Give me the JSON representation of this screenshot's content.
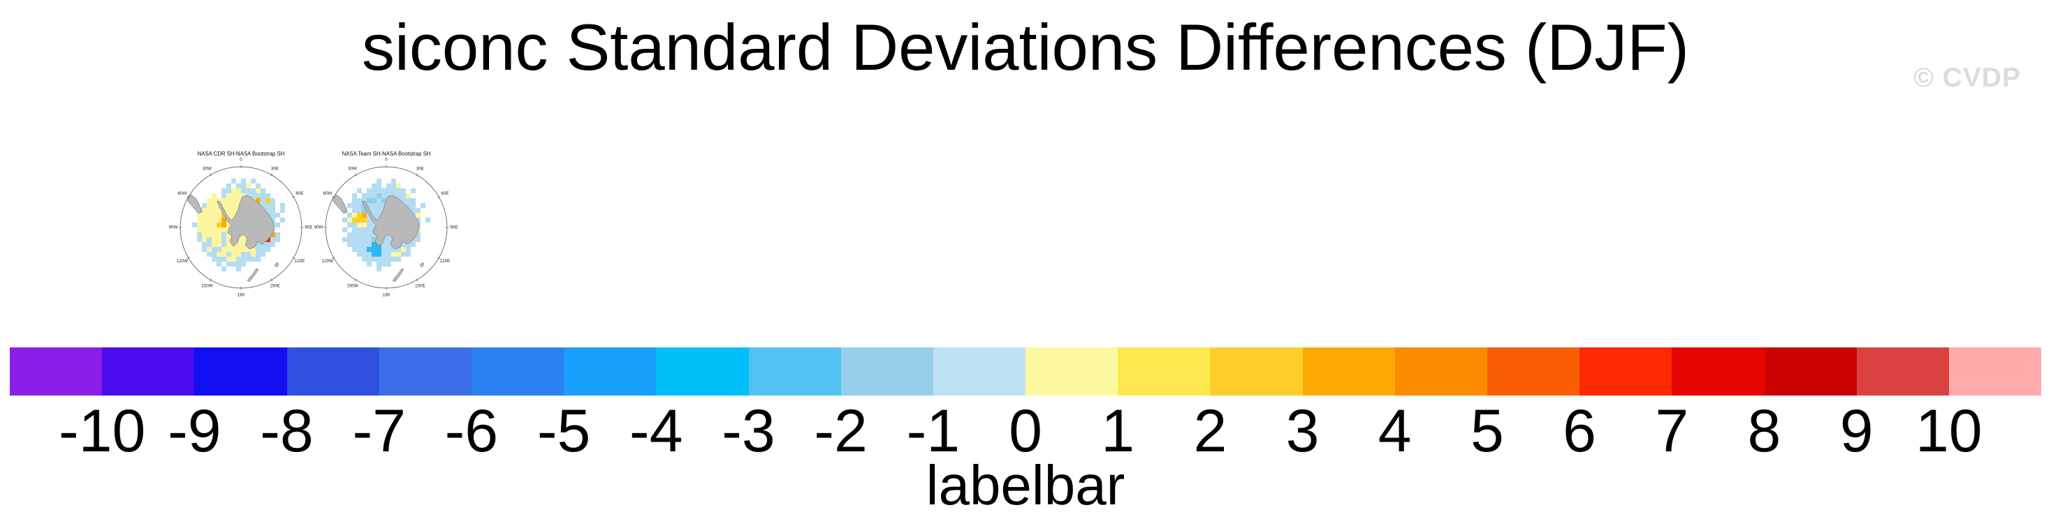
{
  "page": {
    "title": "siconc Standard Deviations Differences (DJF)",
    "watermark": "© CVDP",
    "background": "#ffffff"
  },
  "maps": [
    {
      "title": "NASA CDR SH-NASA Bootstrap SH",
      "lon_labels": [
        {
          "label": "0",
          "deg": 0
        },
        {
          "label": "30E",
          "deg": 30
        },
        {
          "label": "60E",
          "deg": 60
        },
        {
          "label": "90E",
          "deg": 90
        },
        {
          "label": "120E",
          "deg": 120
        },
        {
          "label": "150E",
          "deg": 150
        },
        {
          "label": "180",
          "deg": 180
        },
        {
          "label": "150W",
          "deg": 210
        },
        {
          "label": "120W",
          "deg": 240
        },
        {
          "label": "90W",
          "deg": 270
        },
        {
          "label": "60W",
          "deg": 300
        },
        {
          "label": "30W",
          "deg": 330
        }
      ],
      "grid": [
        "......................",
        ".........b.b.b........",
        "........b.bby.b.......",
        ".......bbyybbbyb......",
        ".....y.byyyybbbbb.....",
        "....yyyyyyyyyyobYb....",
        "...byyyyyyyyyybbbb.b..",
        "..byyyyyyyyyyybbbb.b..",
        "..yyyyyYyyyyyybbbbb...",
        "..yyyyyoyyyyyybbbb.b..",
        ".byyyyYoyyyyyybbbbb...",
        "..yyyyyyyyyyyybbbb....",
        "..byyyybyyyyyybbbob...",
        "..bybyybyyyyyybbrbb...",
        "...bbyybyyyyyybbbb....",
        "...bybbyyyyyyybbb.....",
        "....bbyybyybbybb......",
        ".....bbbyybbbbb.......",
        "......b.bbbb..........",
        ".......b..b...........",
        "......................",
        "......................"
      ]
    },
    {
      "title": "NASA Team SH-NASA Bootstrap SH",
      "lon_labels": [
        {
          "label": "0",
          "deg": 0
        },
        {
          "label": "30E",
          "deg": 30
        },
        {
          "label": "60E",
          "deg": 60
        },
        {
          "label": "90E",
          "deg": 90
        },
        {
          "label": "120E",
          "deg": 120
        },
        {
          "label": "150E",
          "deg": 150
        },
        {
          "label": "180",
          "deg": 180
        },
        {
          "label": "150W",
          "deg": 210
        },
        {
          "label": "120W",
          "deg": 240
        },
        {
          "label": "90W",
          "deg": 270
        },
        {
          "label": "60W",
          "deg": 300
        },
        {
          "label": "30W",
          "deg": 330
        }
      ],
      "grid": [
        "......................",
        ".........b..b.........",
        "........bb.bby........",
        ".....b.bbbbbbbb.b.....",
        "....b.bbbcbbbbby......",
        "....bbbccbcbbbbbb.....",
        "...bbbcbbbbbcbbbb.b...",
        "..b.bbcbbbbbbcbbbb....",
        "...byYobbbbbbbbbby....",
        "..byYYYbbbbbbbbbbb.b..",
        "...bbyybbbbbbbbcbb....",
        "..b.bbbbbbbbbbbbby....",
        "...bbbbbbbbbbbbbYb....",
        "..bbbbbbcbbbbbbObb....",
        "...bbbbbCCbbbbbbb.....",
        "....bbbCCCbbbbyb......",
        ".....bbbCCbbyybb......",
        "......bbbbbbbb........",
        ".......b.bbb..........",
        ".........b............",
        "......................",
        "......................"
      ]
    }
  ],
  "map_style": {
    "land_color": "#b9b9b9",
    "land_outline": "#4a4a4a",
    "circle_color": "#3a3a3a",
    "label_color": "#222222",
    "cell_colors": {
      "y": "#FCF6A0",
      "Y": "#FDCE2A",
      "o": "#FCAB05",
      "O": "#FA5F05",
      "r": "#EE2800",
      "b": "#B4DCF2",
      "c": "#8FCDEC",
      "C": "#29B8F4"
    }
  },
  "labelbar": {
    "caption": "labelbar",
    "tick_labels": [
      "-10",
      "-9",
      "-8",
      "-7",
      "-6",
      "-5",
      "-4",
      "-3",
      "-2",
      "-1",
      "0",
      "1",
      "2",
      "3",
      "4",
      "5",
      "6",
      "7",
      "8",
      "9",
      "10"
    ],
    "colors": [
      "#8B1FE9",
      "#4A0DF0",
      "#1110F2",
      "#3050E2",
      "#3A6FE8",
      "#2C81F2",
      "#18A0FB",
      "#00C0FA",
      "#52C1F2",
      "#97CFEA",
      "#BDE2F4",
      "#FCF89E",
      "#FDE94F",
      "#FDCE2A",
      "#FCAB05",
      "#FB8C00",
      "#FA5F05",
      "#FF2800",
      "#E60500",
      "#CB0300",
      "#DC4242",
      "#FFABAB"
    ]
  }
}
